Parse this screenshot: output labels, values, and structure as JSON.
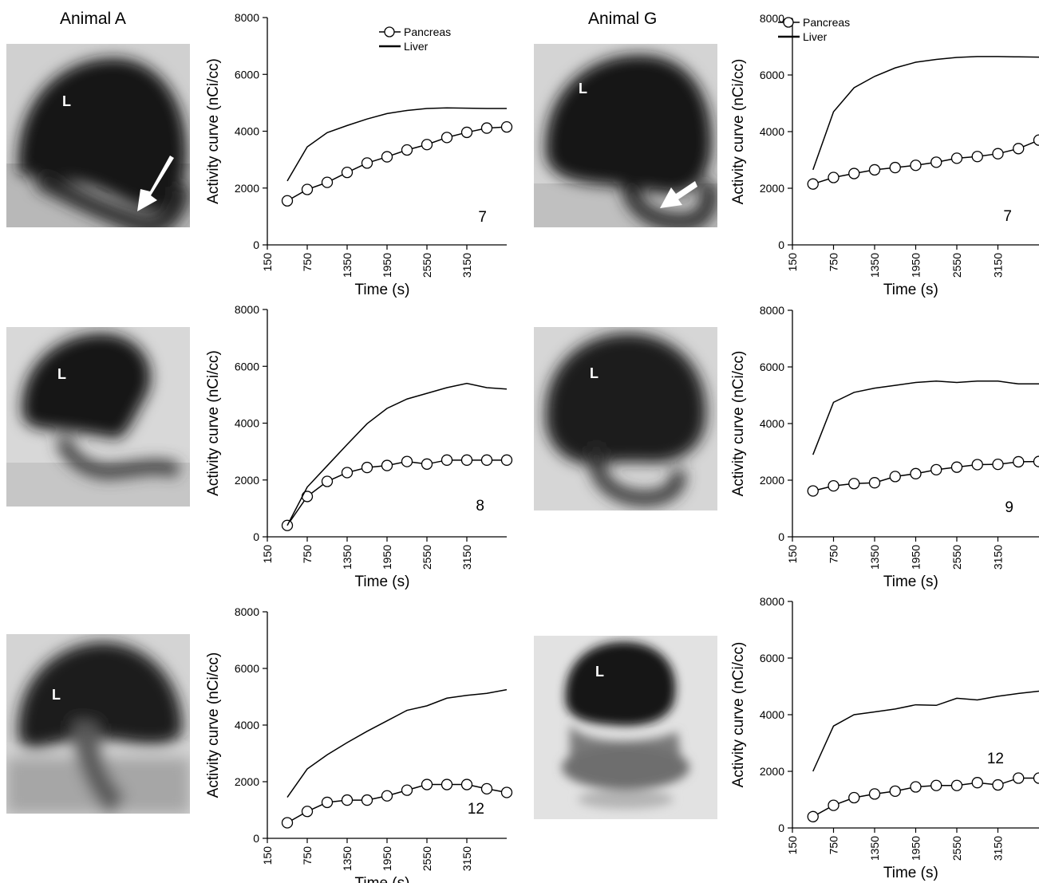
{
  "figure": {
    "animal_a_label": "Animal A",
    "animal_g_label": "Animal G",
    "liver_marker": "L"
  },
  "legend": {
    "pancreas": "Pancreas",
    "liver": "Liver"
  },
  "chart_data": [
    {
      "type": "line",
      "animal": "Animal A",
      "row": 1,
      "panel_number": "7",
      "xlabel": "Time (s)",
      "ylabel": "Activity curve (nCi/cc)",
      "xlim": [
        150,
        3750
      ],
      "ylim": [
        0,
        8000
      ],
      "xticks": [
        150,
        750,
        1350,
        1950,
        2550,
        3150
      ],
      "yticks": [
        0,
        2000,
        4000,
        6000,
        8000
      ],
      "legend": "top-right",
      "series": [
        {
          "name": "Pancreas",
          "marker": "circle",
          "x": [
            450,
            750,
            1050,
            1350,
            1650,
            1950,
            2250,
            2550,
            2850,
            3150,
            3450,
            3750
          ],
          "y": [
            1550,
            1950,
            2200,
            2550,
            2880,
            3100,
            3340,
            3530,
            3780,
            3960,
            4110,
            4150
          ]
        },
        {
          "name": "Liver",
          "marker": "none",
          "x": [
            450,
            750,
            1050,
            1350,
            1650,
            1950,
            2250,
            2550,
            2850,
            3150,
            3450,
            3750
          ],
          "y": [
            2250,
            3450,
            3950,
            4200,
            4430,
            4620,
            4730,
            4800,
            4820,
            4810,
            4800,
            4800
          ]
        }
      ]
    },
    {
      "type": "line",
      "animal": "Animal G",
      "row": 1,
      "panel_number": "7",
      "xlabel": "Time (s)",
      "ylabel": "Activity curve (nCi/cc)",
      "xlim": [
        150,
        3750
      ],
      "ylim": [
        0,
        8000
      ],
      "xticks": [
        150,
        750,
        1350,
        1950,
        2550,
        3150
      ],
      "yticks": [
        0,
        2000,
        4000,
        6000,
        8000
      ],
      "legend": "top-left",
      "series": [
        {
          "name": "Pancreas",
          "marker": "circle",
          "x": [
            450,
            750,
            1050,
            1350,
            1650,
            1950,
            2250,
            2550,
            2850,
            3150,
            3450,
            3750
          ],
          "y": [
            2150,
            2380,
            2520,
            2650,
            2730,
            2810,
            2920,
            3060,
            3120,
            3220,
            3400,
            3700
          ]
        },
        {
          "name": "Liver",
          "marker": "none",
          "x": [
            450,
            750,
            1050,
            1350,
            1650,
            1950,
            2250,
            2550,
            2850,
            3150,
            3450,
            3750
          ],
          "y": [
            2650,
            4700,
            5550,
            5950,
            6250,
            6450,
            6550,
            6620,
            6650,
            6650,
            6640,
            6630
          ]
        }
      ]
    },
    {
      "type": "line",
      "animal": "Animal A",
      "row": 2,
      "panel_number": "8",
      "xlabel": "Time (s)",
      "ylabel": "Activity curve (nCi/cc)",
      "xlim": [
        150,
        3750
      ],
      "ylim": [
        0,
        8000
      ],
      "xticks": [
        150,
        750,
        1350,
        1950,
        2550,
        3150
      ],
      "yticks": [
        0,
        2000,
        4000,
        6000,
        8000
      ],
      "legend": "none",
      "series": [
        {
          "name": "Pancreas",
          "marker": "circle",
          "x": [
            450,
            750,
            1050,
            1350,
            1650,
            1950,
            2250,
            2550,
            2850,
            3150,
            3450,
            3750
          ],
          "y": [
            400,
            1420,
            1950,
            2260,
            2440,
            2510,
            2650,
            2560,
            2700,
            2700,
            2700,
            2700
          ]
        },
        {
          "name": "Liver",
          "marker": "none",
          "x": [
            450,
            750,
            1050,
            1350,
            1650,
            1950,
            2250,
            2550,
            2850,
            3150,
            3450,
            3750
          ],
          "y": [
            400,
            1750,
            2500,
            3250,
            3980,
            4520,
            4850,
            5050,
            5250,
            5400,
            5250,
            5200
          ]
        }
      ]
    },
    {
      "type": "line",
      "animal": "Animal G",
      "row": 2,
      "panel_number": "9",
      "xlabel": "Time (s)",
      "ylabel": "Activity curve (nCi/cc)",
      "xlim": [
        150,
        3750
      ],
      "ylim": [
        0,
        8000
      ],
      "xticks": [
        150,
        750,
        1350,
        1950,
        2550,
        3150
      ],
      "yticks": [
        0,
        2000,
        4000,
        6000,
        8000
      ],
      "legend": "none",
      "series": [
        {
          "name": "Pancreas",
          "marker": "circle",
          "x": [
            450,
            750,
            1050,
            1350,
            1650,
            1950,
            2250,
            2550,
            2850,
            3150,
            3450,
            3750
          ],
          "y": [
            1620,
            1800,
            1880,
            1910,
            2130,
            2230,
            2370,
            2460,
            2550,
            2560,
            2650,
            2660
          ]
        },
        {
          "name": "Liver",
          "marker": "none",
          "x": [
            450,
            750,
            1050,
            1350,
            1650,
            1950,
            2250,
            2550,
            2850,
            3150,
            3450,
            3750
          ],
          "y": [
            2900,
            4750,
            5100,
            5250,
            5350,
            5450,
            5500,
            5450,
            5500,
            5500,
            5400,
            5400
          ]
        }
      ]
    },
    {
      "type": "line",
      "animal": "Animal A",
      "row": 3,
      "panel_number": "12",
      "xlabel": "Time (s)",
      "ylabel": "Activity curve (nCi/cc)",
      "xlim": [
        150,
        3750
      ],
      "ylim": [
        0,
        8000
      ],
      "xticks": [
        150,
        750,
        1350,
        1950,
        2550,
        3150
      ],
      "yticks": [
        0,
        2000,
        4000,
        6000,
        8000
      ],
      "legend": "none",
      "series": [
        {
          "name": "Pancreas",
          "marker": "circle",
          "x": [
            450,
            750,
            1050,
            1350,
            1650,
            1950,
            2250,
            2550,
            2850,
            3150,
            3450,
            3750
          ],
          "y": [
            550,
            950,
            1270,
            1350,
            1350,
            1500,
            1700,
            1900,
            1900,
            1900,
            1750,
            1620
          ]
        },
        {
          "name": "Liver",
          "marker": "none",
          "x": [
            450,
            750,
            1050,
            1350,
            1650,
            1950,
            2250,
            2550,
            2850,
            3150,
            3450,
            3750
          ],
          "y": [
            1450,
            2450,
            2950,
            3380,
            3780,
            4150,
            4520,
            4680,
            4950,
            5050,
            5120,
            5250
          ]
        }
      ]
    },
    {
      "type": "line",
      "animal": "Animal G",
      "row": 3,
      "panel_number": "12",
      "xlabel": "Time (s)",
      "ylabel": "Activity curve (nCi/cc)",
      "xlim": [
        150,
        3750
      ],
      "ylim": [
        0,
        8000
      ],
      "xticks": [
        150,
        750,
        1350,
        1950,
        2550,
        3150
      ],
      "yticks": [
        0,
        2000,
        4000,
        6000,
        8000
      ],
      "legend": "none",
      "series": [
        {
          "name": "Pancreas",
          "marker": "circle",
          "x": [
            450,
            750,
            1050,
            1350,
            1650,
            1950,
            2250,
            2550,
            2850,
            3150,
            3450,
            3750
          ],
          "y": [
            400,
            800,
            1070,
            1200,
            1300,
            1450,
            1500,
            1500,
            1600,
            1520,
            1760,
            1760
          ]
        },
        {
          "name": "Liver",
          "marker": "none",
          "x": [
            450,
            750,
            1050,
            1350,
            1650,
            1950,
            2250,
            2550,
            2850,
            3150,
            3450,
            3750
          ],
          "y": [
            2000,
            3600,
            4000,
            4100,
            4200,
            4350,
            4330,
            4580,
            4520,
            4650,
            4750,
            4830
          ]
        }
      ]
    }
  ]
}
